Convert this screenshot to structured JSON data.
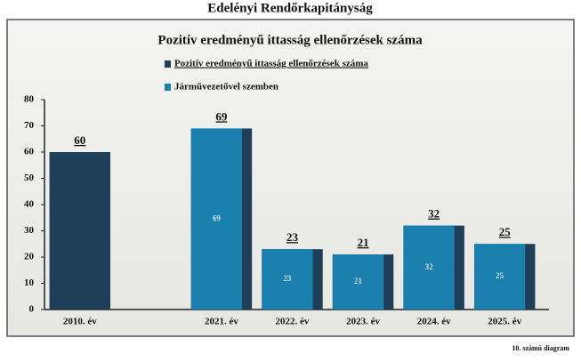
{
  "header": {
    "title": "Edelényi Rendőrkapitányság"
  },
  "chart_data": {
    "type": "bar",
    "title": "Pozitív eredményű ittasság ellenőrzések száma",
    "categories": [
      "2010. év",
      null,
      "2021. év",
      "2022. év",
      "2023. év",
      "2024. év",
      "2025. év"
    ],
    "series": [
      {
        "name": "Pozitív eredményű ittasság ellenőrzések száma",
        "color": "#1e3f57",
        "values": [
          60,
          null,
          69,
          23,
          21,
          32,
          25
        ]
      },
      {
        "name": "Járművezetővel szemben",
        "color": "#1b7fae",
        "values": [
          null,
          null,
          69,
          23,
          21,
          32,
          25
        ]
      }
    ],
    "ylim": [
      0,
      80
    ],
    "yticks": [
      0,
      10,
      20,
      30,
      40,
      50,
      60,
      70,
      80
    ],
    "legend": "top"
  },
  "footer": {
    "note": "10. számú diagram"
  }
}
